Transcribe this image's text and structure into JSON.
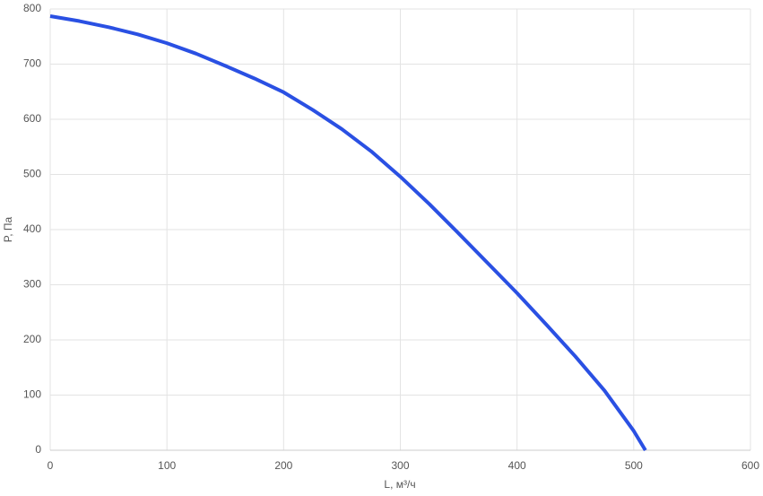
{
  "chart_data": {
    "type": "line",
    "x_label": "L, м³/ч",
    "y_label": "P, Па",
    "x": [
      0,
      25,
      50,
      75,
      100,
      125,
      150,
      175,
      200,
      225,
      250,
      275,
      300,
      325,
      350,
      375,
      400,
      425,
      450,
      475,
      500,
      510
    ],
    "series": [
      {
        "name": "P",
        "color": "#2a50e3",
        "values": [
          787,
          778,
          767,
          754,
          738,
          719,
          697,
          674,
          649,
          617,
          582,
          542,
          496,
          446,
          393,
          339,
          285,
          228,
          170,
          108,
          35,
          0
        ]
      }
    ],
    "xlim": [
      0,
      600
    ],
    "xticks": [
      0,
      100,
      200,
      300,
      400,
      500,
      600
    ],
    "ylim": [
      0,
      800
    ],
    "yticks": [
      0,
      100,
      200,
      300,
      400,
      500,
      600,
      700,
      800
    ],
    "grid": true
  }
}
